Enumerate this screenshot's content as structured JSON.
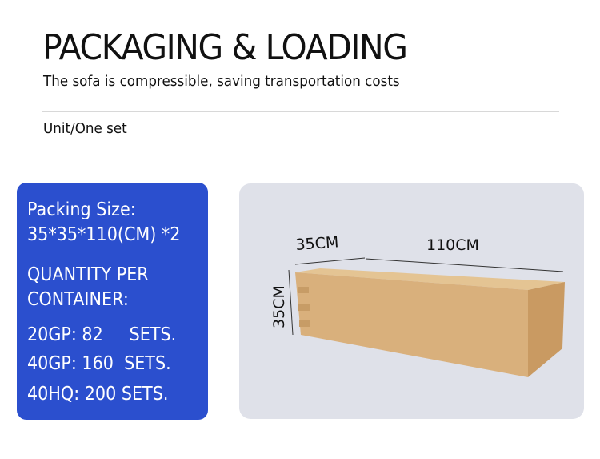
{
  "header": {
    "title": "PACKAGING & LOADING",
    "subtitle": "The sofa is compressible, saving transportation costs",
    "unit": "Unit/One set"
  },
  "info_panel": {
    "packing_size_label": "Packing Size:",
    "packing_size_value": "35*35*110(CM) *2",
    "quantity_line1": "QUANTITY PER",
    "quantity_line2": "CONTAINER:",
    "containers": [
      {
        "text": "20GP: 82     SETS."
      },
      {
        "text": "40GP: 160  SETS."
      },
      {
        "text": "40HQ: 200 SETS."
      }
    ],
    "background_color": "#2b4fce"
  },
  "photo": {
    "width_label": "35CM",
    "length_label": "110CM",
    "height_label": "35CM",
    "box_color": "#d9b07c"
  }
}
